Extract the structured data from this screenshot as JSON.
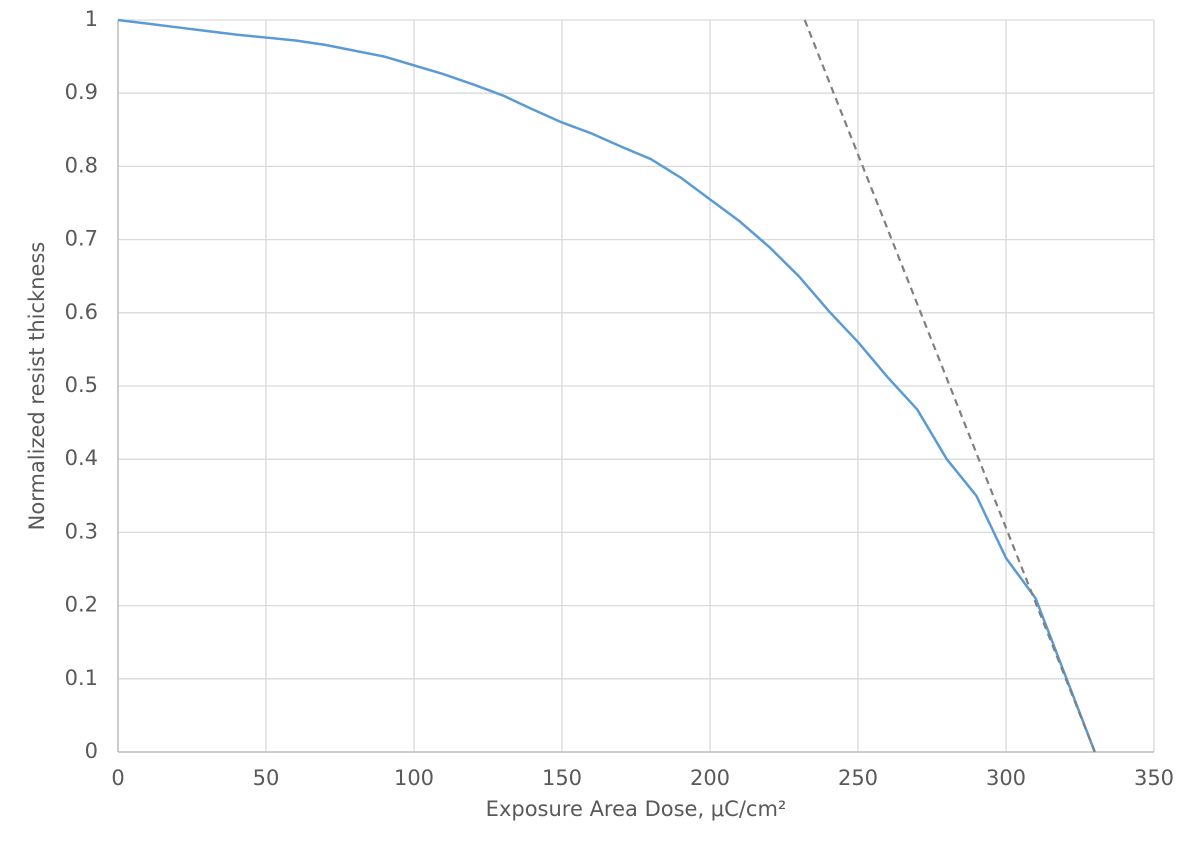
{
  "chart_data": {
    "type": "line",
    "x_label": "Exposure Area Dose, μC/cm²",
    "y_label": "Normalized resist thickness",
    "xlim": [
      0,
      350
    ],
    "xticks": [
      0,
      50,
      100,
      150,
      200,
      250,
      300,
      350
    ],
    "ylim": [
      0,
      1
    ],
    "yticks": [
      0,
      0.1,
      0.2,
      0.3,
      0.4,
      0.5,
      0.6,
      0.7,
      0.8,
      0.9,
      1
    ],
    "grid": true,
    "series": [
      {
        "color": "#5b9bd5",
        "style": "solid",
        "x": [
          0,
          10,
          20,
          30,
          40,
          50,
          60,
          70,
          80,
          90,
          100,
          110,
          120,
          130,
          140,
          150,
          160,
          170,
          180,
          190,
          200,
          210,
          220,
          230,
          240,
          250,
          260,
          270,
          280,
          290,
          300,
          310,
          320,
          330
        ],
        "values": [
          1.0,
          0.995,
          0.99,
          0.985,
          0.98,
          0.976,
          0.972,
          0.966,
          0.958,
          0.95,
          0.938,
          0.926,
          0.912,
          0.897,
          0.878,
          0.86,
          0.845,
          0.827,
          0.81,
          0.785,
          0.755,
          0.725,
          0.69,
          0.65,
          0.603,
          0.56,
          0.512,
          0.468,
          0.4,
          0.35,
          0.265,
          0.21,
          0.105,
          0
        ]
      },
      {
        "color": "#808080",
        "style": "dashed",
        "x": [
          232,
          330
        ],
        "values": [
          1,
          0
        ]
      }
    ]
  }
}
